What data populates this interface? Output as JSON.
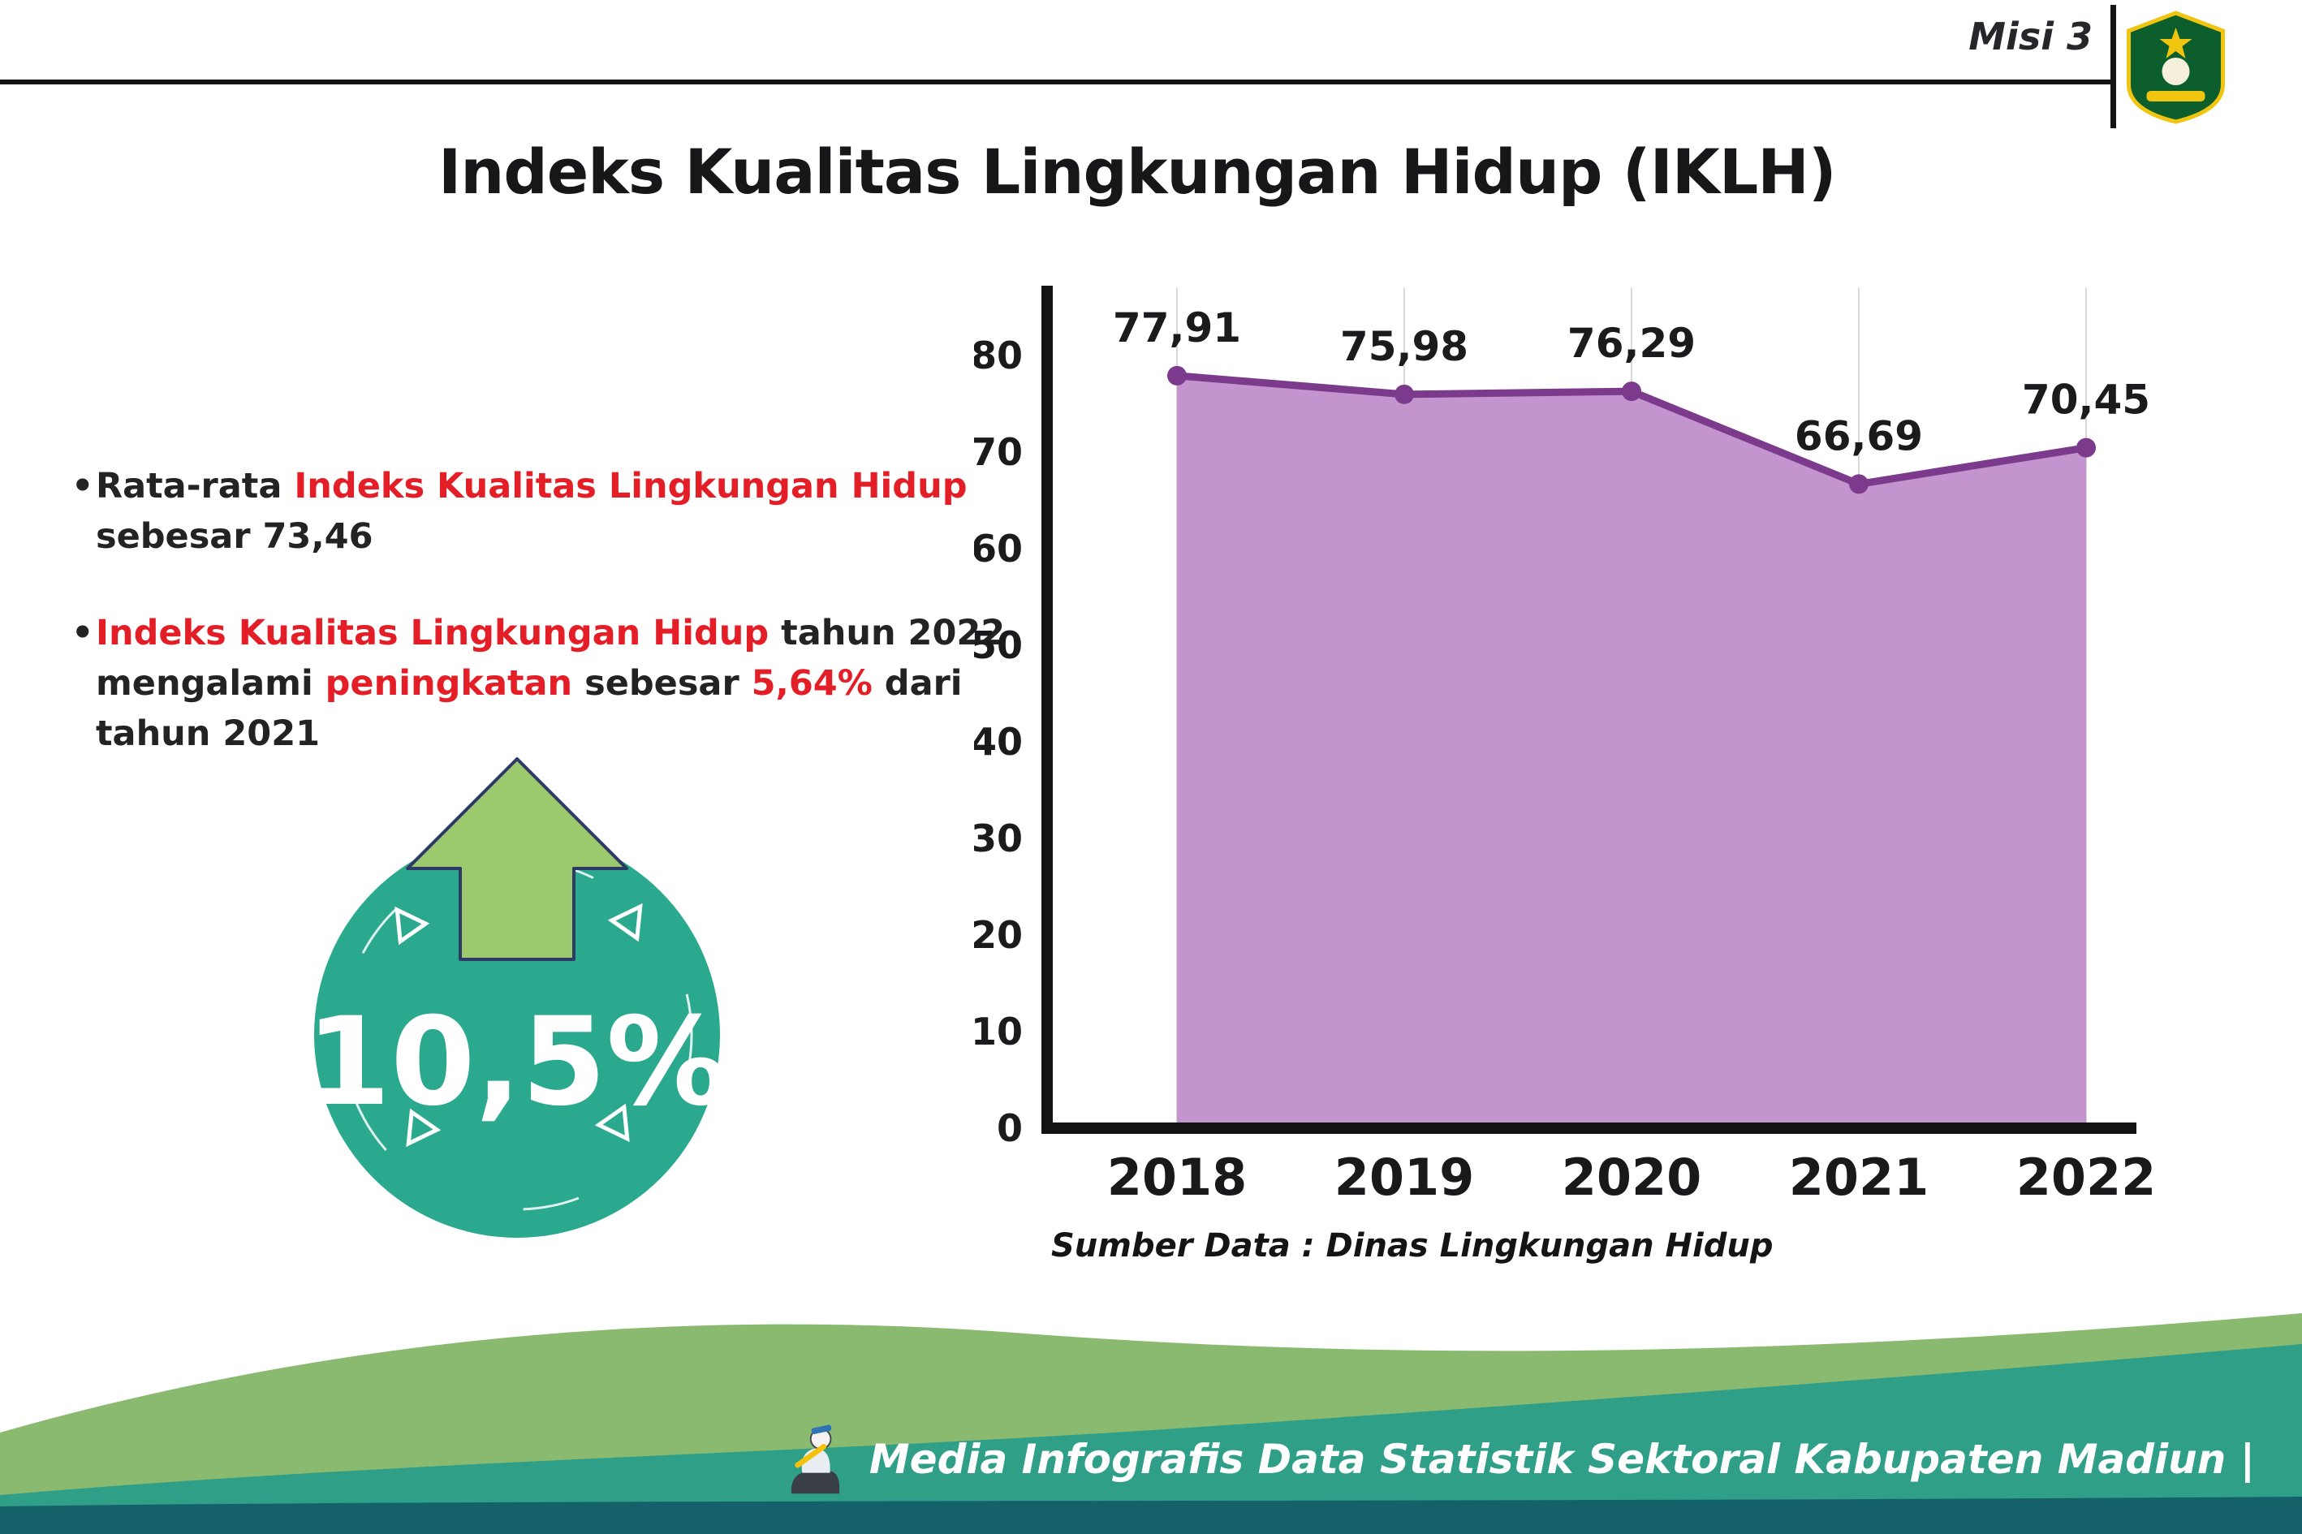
{
  "header": {
    "misi": "Misi 3",
    "logo_icon": "kabupaten-madiun-crest"
  },
  "title": "Indeks Kualitas Lingkungan Hidup (IKLH)",
  "bullets": [
    {
      "segments": [
        {
          "t": "Rata-rata ",
          "c": "k"
        },
        {
          "t": "Indeks Kualitas Lingkungan Hidup",
          "c": "r"
        },
        {
          "t": " sebesar 73,46",
          "c": "k"
        }
      ]
    },
    {
      "segments": [
        {
          "t": "Indeks Kualitas Lingkungan Hidup",
          "c": "r"
        },
        {
          "t": " tahun 2022 mengalami ",
          "c": "k"
        },
        {
          "t": "peningkatan",
          "c": "r"
        },
        {
          "t": " sebesar ",
          "c": "k"
        },
        {
          "t": "5,64%",
          "c": "r"
        },
        {
          "t": " dari tahun 2021",
          "c": "k"
        }
      ]
    }
  ],
  "badge": {
    "value": "10,5%",
    "icon": "up-arrow-icon"
  },
  "chart_data": {
    "type": "area",
    "title": "",
    "categories": [
      "2018",
      "2019",
      "2020",
      "2021",
      "2022"
    ],
    "values": [
      77.91,
      75.98,
      76.29,
      66.69,
      70.45
    ],
    "value_labels": [
      "77,91",
      "75,98",
      "76,29",
      "66,69",
      "70,45"
    ],
    "ylim": [
      0,
      80
    ],
    "yticks": [
      0,
      10,
      20,
      30,
      40,
      50,
      60,
      70,
      80
    ],
    "grid": "vertical-light",
    "legend": "none",
    "line_color": "#7b3a8c",
    "fill_color": "#c494cf",
    "source": "Sumber Data : Dinas Lingkungan Hidup"
  },
  "footer": {
    "text": "Media Infografis Data Statistik Sektoral Kabupaten Madiun |",
    "icon": "infographic-mascot-icon"
  },
  "colors": {
    "red": "#e31e26",
    "ink": "#1b1b1d",
    "teal_badge": "#2aa98e",
    "arrow_green": "#9dc96e",
    "arrow_outline": "#2e3a66",
    "wave_green": "#8aba6f",
    "wave_teal": "#2f9f88",
    "wave_dark": "#15616a",
    "logo_green": "#0c5f2c",
    "logo_yellow": "#f1c40f"
  }
}
